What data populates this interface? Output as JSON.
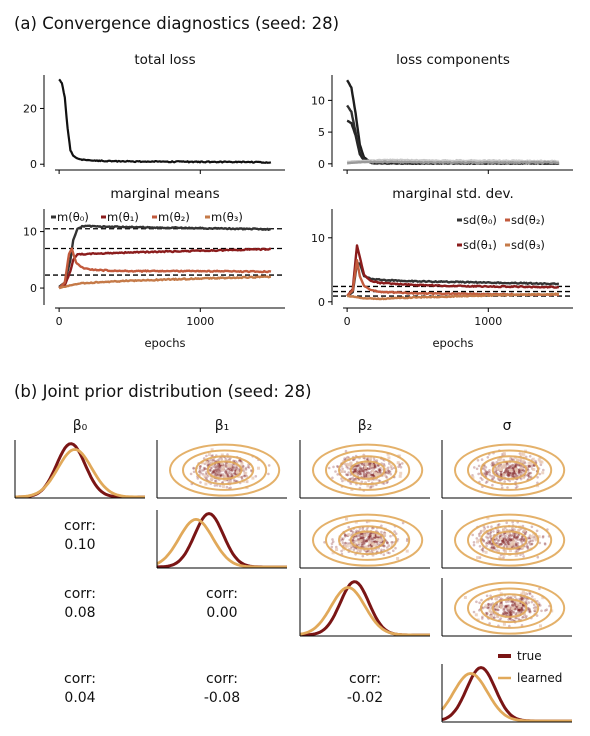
{
  "section_a_title": "(a) Convergence diagnostics (seed: 28)",
  "section_b_title": "(b) Joint prior distribution (seed: 28)",
  "colors": {
    "true": "#7a1515",
    "learned": "#e1a95a",
    "mean0": "#333333",
    "mean1": "#8b1c1c",
    "mean2": "#c25a3c",
    "mean3": "#c57a48",
    "components_dark": "#222222",
    "components_light": "#aaaaaa"
  },
  "chart_data": [
    {
      "id": "total_loss",
      "type": "line",
      "title": "total loss",
      "xlabel": "",
      "ylabel": "",
      "xlim": [
        -100,
        1600
      ],
      "ylim": [
        -1,
        32
      ],
      "yticks": [
        0,
        20
      ],
      "xticks": [
        0,
        1000
      ],
      "series": [
        {
          "x": [
            0,
            20,
            40,
            60,
            80,
            100,
            130,
            170,
            220,
            300,
            500,
            800,
            1100,
            1500
          ],
          "y": [
            30.5,
            29,
            24,
            13,
            5,
            3,
            2,
            1.6,
            1.4,
            1.2,
            1.0,
            0.9,
            0.8,
            0.7
          ]
        }
      ]
    },
    {
      "id": "loss_components",
      "type": "line",
      "title": "loss components",
      "xlabel": "",
      "ylabel": "",
      "xlim": [
        -100,
        1600
      ],
      "ylim": [
        -0.5,
        14
      ],
      "yticks": [
        0,
        5,
        10
      ],
      "xticks": [
        0,
        1000
      ],
      "series": [
        {
          "x": [
            0,
            30,
            60,
            90,
            120,
            160,
            200,
            300,
            1500
          ],
          "y": [
            13.2,
            12,
            8,
            3,
            1,
            0.4,
            0.2,
            0.1,
            0.1
          ]
        },
        {
          "x": [
            0,
            30,
            60,
            90,
            120,
            160,
            200,
            300,
            1500
          ],
          "y": [
            9.2,
            8.2,
            5,
            1.8,
            0.6,
            0.3,
            0.2,
            0.1,
            0.1
          ]
        },
        {
          "x": [
            0,
            30,
            60,
            90,
            120,
            160,
            200,
            300,
            1500
          ],
          "y": [
            6.8,
            6.4,
            4.5,
            1.5,
            0.5,
            0.2,
            0.1,
            0.1,
            0.1
          ]
        },
        {
          "x": [
            0,
            60,
            150,
            300,
            600,
            1000,
            1500
          ],
          "y": [
            0.3,
            0.4,
            0.5,
            0.6,
            0.5,
            0.5,
            0.4
          ]
        },
        {
          "x": [
            0,
            60,
            150,
            300,
            600,
            1000,
            1500
          ],
          "y": [
            0.1,
            0.2,
            0.3,
            0.3,
            0.2,
            0.2,
            0.2
          ]
        }
      ]
    },
    {
      "id": "marginal_means",
      "type": "line",
      "title": "marginal means",
      "xlabel": "epochs",
      "ylabel": "",
      "xlim": [
        -100,
        1600
      ],
      "ylim": [
        -3,
        14
      ],
      "yticks": [
        0,
        10
      ],
      "xticks": [
        0,
        1000
      ],
      "reference_lines": [
        10.5,
        7.0,
        2.3
      ],
      "series": [
        {
          "name": "m(θ₀)",
          "x": [
            0,
            40,
            80,
            100,
            130,
            170,
            250,
            500,
            1000,
            1500
          ],
          "y": [
            0.2,
            1.0,
            5.0,
            8.5,
            10.5,
            11.0,
            10.9,
            10.8,
            10.6,
            10.4
          ]
        },
        {
          "name": "m(θ₁)",
          "x": [
            0,
            40,
            80,
            100,
            130,
            170,
            250,
            500,
            1000,
            1500
          ],
          "y": [
            0.0,
            0.5,
            3.0,
            5.0,
            6.0,
            6.0,
            6.1,
            6.3,
            6.6,
            6.9
          ]
        },
        {
          "name": "m(θ₂)",
          "x": [
            0,
            40,
            70,
            90,
            120,
            170,
            250,
            500,
            1000,
            1500
          ],
          "y": [
            0.0,
            1.0,
            6.0,
            7.0,
            4.5,
            3.5,
            3.2,
            3.0,
            3.0,
            2.9
          ]
        },
        {
          "name": "m(θ₃)",
          "x": [
            0,
            50,
            100,
            150,
            250,
            500,
            1000,
            1500
          ],
          "y": [
            0.0,
            0.3,
            0.6,
            0.8,
            1.0,
            1.3,
            1.7,
            2.0
          ]
        }
      ]
    },
    {
      "id": "marginal_sd",
      "type": "line",
      "title": "marginal std. dev.",
      "xlabel": "epochs",
      "ylabel": "",
      "xlim": [
        -100,
        1600
      ],
      "ylim": [
        -0.5,
        14.5
      ],
      "yticks": [
        0,
        10
      ],
      "xticks": [
        0,
        1000
      ],
      "reference_lines": [
        2.4,
        1.6,
        0.9
      ],
      "series": [
        {
          "name": "sd(θ₀)",
          "x": [
            0,
            40,
            70,
            90,
            120,
            170,
            250,
            500,
            1000,
            1500
          ],
          "y": [
            0.9,
            1.5,
            6.0,
            6.0,
            4.0,
            3.6,
            3.4,
            3.2,
            3.0,
            2.8
          ]
        },
        {
          "name": "sd(θ₁)",
          "x": [
            0,
            40,
            70,
            90,
            120,
            170,
            250,
            500,
            1000,
            1500
          ],
          "y": [
            0.9,
            2.0,
            8.8,
            7.0,
            4.2,
            3.2,
            2.9,
            2.6,
            2.4,
            2.3
          ]
        },
        {
          "name": "sd(θ₂)",
          "x": [
            0,
            40,
            70,
            90,
            120,
            170,
            250,
            500,
            1000,
            1500
          ],
          "y": [
            0.9,
            1.8,
            6.5,
            4.0,
            2.5,
            1.8,
            1.5,
            1.3,
            1.2,
            1.1
          ]
        },
        {
          "name": "sd(θ₃)",
          "x": [
            0,
            50,
            100,
            150,
            250,
            500,
            1000,
            1500
          ],
          "y": [
            0.9,
            0.8,
            0.6,
            0.5,
            0.5,
            0.7,
            1.0,
            1.2
          ]
        }
      ]
    },
    {
      "id": "joint_prior_pairplot",
      "type": "scatter",
      "variables": [
        "β₀",
        "β₁",
        "β₂",
        "σ"
      ],
      "correlations": [
        {
          "pair": [
            "β₁",
            "β₀"
          ],
          "label": "corr:",
          "value": "0.10"
        },
        {
          "pair": [
            "β₂",
            "β₀"
          ],
          "label": "corr:",
          "value": "0.08"
        },
        {
          "pair": [
            "β₂",
            "β₁"
          ],
          "label": "corr:",
          "value": "0.00"
        },
        {
          "pair": [
            "σ",
            "β₀"
          ],
          "label": "corr:",
          "value": "0.04"
        },
        {
          "pair": [
            "σ",
            "β₁"
          ],
          "label": "corr:",
          "value": "-0.08"
        },
        {
          "pair": [
            "σ",
            "β₂"
          ],
          "label": "corr:",
          "value": "-0.02"
        }
      ],
      "legend": {
        "position": "upper-right",
        "entries": [
          "true",
          "learned"
        ]
      }
    }
  ]
}
